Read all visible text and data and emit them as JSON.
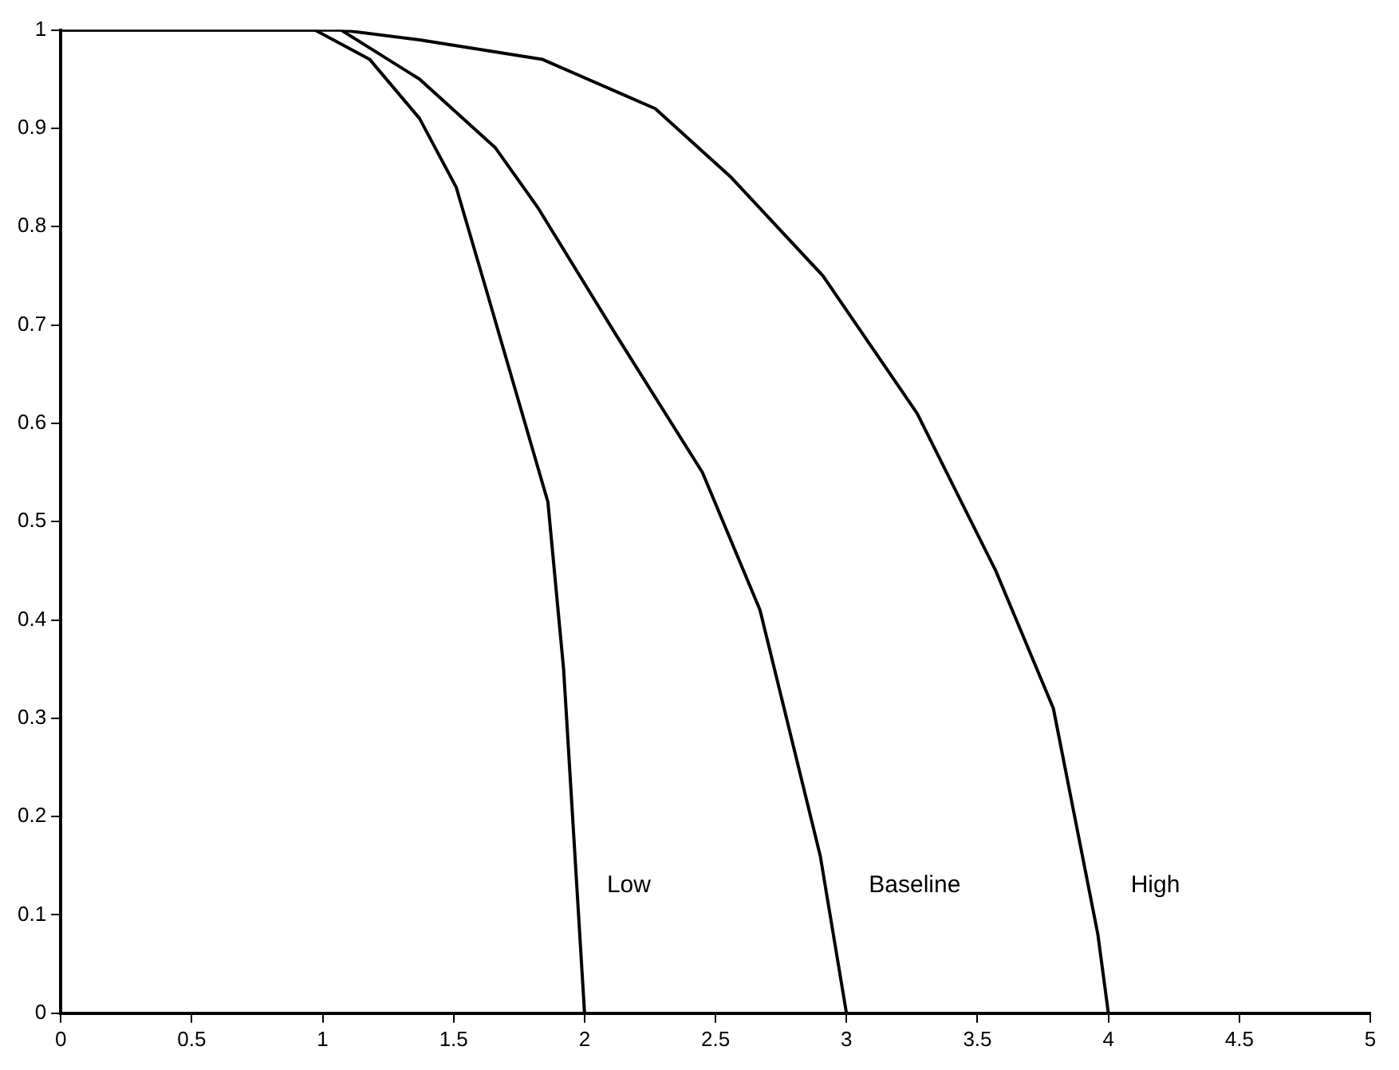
{
  "chart_data": {
    "type": "line",
    "xlim": [
      0,
      5
    ],
    "ylim": [
      0,
      1
    ],
    "xticks": [
      0,
      0.5,
      1,
      1.5,
      2,
      2.5,
      3,
      3.5,
      4,
      4.5,
      5
    ],
    "yticks": [
      0,
      0.1,
      0.2,
      0.3,
      0.4,
      0.5,
      0.6,
      0.7,
      0.8,
      0.9,
      1
    ],
    "grid": false,
    "legend": false,
    "marker": "none",
    "line_style": "solid",
    "series": [
      {
        "name": "Low",
        "color": "#000000",
        "x": [
          0,
          0.97,
          1.18,
          1.37,
          1.51,
          1.62,
          1.86,
          1.92,
          2.0
        ],
        "values": [
          1,
          1,
          0.97,
          0.91,
          0.84,
          0.74,
          0.52,
          0.35,
          0
        ]
      },
      {
        "name": "Baseline",
        "color": "#000000",
        "x": [
          0,
          1.07,
          1.37,
          1.66,
          1.82,
          2.12,
          2.45,
          2.67,
          2.9,
          3.0
        ],
        "values": [
          1,
          1,
          0.95,
          0.88,
          0.82,
          0.69,
          0.55,
          0.41,
          0.16,
          0
        ]
      },
      {
        "name": "High",
        "color": "#000000",
        "x": [
          0,
          1.07,
          1.37,
          1.84,
          2.27,
          2.56,
          2.91,
          3.27,
          3.57,
          3.79,
          3.96,
          4.0
        ],
        "values": [
          1,
          1,
          0.99,
          0.97,
          0.92,
          0.85,
          0.75,
          0.61,
          0.45,
          0.31,
          0.08,
          0
        ]
      }
    ]
  }
}
